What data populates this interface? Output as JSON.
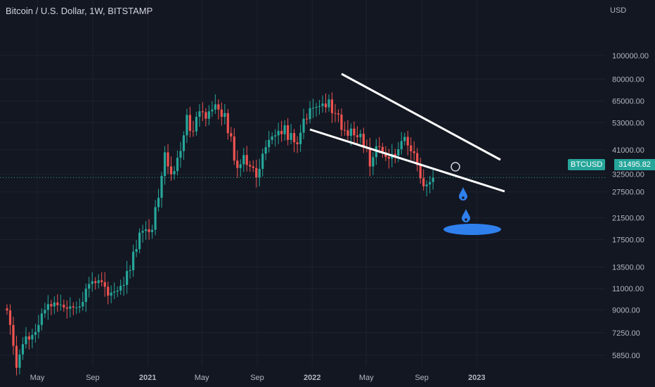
{
  "header": {
    "title": "Bitcoin / U.S. Dollar, 1W, BITSTAMP"
  },
  "axis": {
    "currency": "USD"
  },
  "price_tag": {
    "symbol": "BTCUSD",
    "price": "31495.82"
  },
  "colors": {
    "background": "#131722",
    "up": "#26a69a",
    "down": "#ef5350",
    "grid": "#1e222d",
    "axis_text": "#b2b5be",
    "drawing": "#ffffff",
    "drop": "#2f80ed"
  },
  "chart_data": {
    "type": "candlestick",
    "title": "Bitcoin / U.S. Dollar, 1W, BITSTAMP",
    "y_scale": "log",
    "y_ticks": [
      5850,
      7250,
      9000,
      11000,
      13500,
      17500,
      21500,
      27500,
      32500,
      41000,
      53000,
      65000,
      80000,
      100000
    ],
    "y_tick_labels": [
      "5850.00",
      "7250.00",
      "9000.00",
      "11000.00",
      "13500.00",
      "17500.00",
      "21500.00",
      "27500.00",
      "32500.00",
      "41000.00",
      "53000.00",
      "65000.00",
      "80000.00",
      "100000.00"
    ],
    "x_ticks": [
      {
        "date": "2020-05-01",
        "label": "May"
      },
      {
        "date": "2020-09-01",
        "label": "Sep"
      },
      {
        "date": "2021-01-01",
        "label": "2021"
      },
      {
        "date": "2021-05-01",
        "label": "May"
      },
      {
        "date": "2021-09-01",
        "label": "Sep"
      },
      {
        "date": "2022-01-01",
        "label": "2022"
      },
      {
        "date": "2022-05-01",
        "label": "May"
      },
      {
        "date": "2022-09-01",
        "label": "Sep"
      },
      {
        "date": "2023-01-01",
        "label": "2023"
      }
    ],
    "current_price": 31495.82,
    "series_close": [
      8950,
      7800,
      6400,
      5200,
      5900,
      6500,
      7000,
      6800,
      7100,
      7300,
      7800,
      8700,
      9000,
      9500,
      9300,
      9650,
      9400,
      9450,
      9200,
      9100,
      9300,
      9200,
      9200,
      9300,
      9700,
      11000,
      11500,
      11800,
      11600,
      11900,
      11700,
      11200,
      10300,
      10600,
      10700,
      10800,
      11300,
      11400,
      13000,
      13100,
      15600,
      16000,
      18700,
      19000,
      19300,
      18800,
      19200,
      23800,
      26000,
      32000,
      40000,
      35000,
      32500,
      33500,
      38000,
      40500,
      47000,
      57000,
      49000,
      48800,
      56000,
      59000,
      58500,
      55000,
      59000,
      60000,
      63000,
      60000,
      56000,
      58000,
      48000,
      46500,
      37000,
      34500,
      35700,
      39000,
      35500,
      35000,
      34500,
      31500,
      34200,
      39500,
      42000,
      45000,
      46500,
      47000,
      49000,
      47500,
      51700,
      45000,
      48000,
      44000,
      43200,
      48200,
      55000,
      54800,
      60800,
      61000,
      61500,
      62000,
      63500,
      61300,
      66000,
      58000,
      57800,
      57200,
      49500,
      49300,
      46800,
      50100,
      47000,
      46200,
      47700,
      41800,
      41700,
      35000,
      38200,
      42400,
      42100,
      40000,
      38300,
      37700,
      39400,
      38800,
      41200,
      44500,
      46300,
      42700,
      40400,
      39700,
      35500,
      31300,
      29000,
      29500,
      30200,
      31496
    ]
  }
}
